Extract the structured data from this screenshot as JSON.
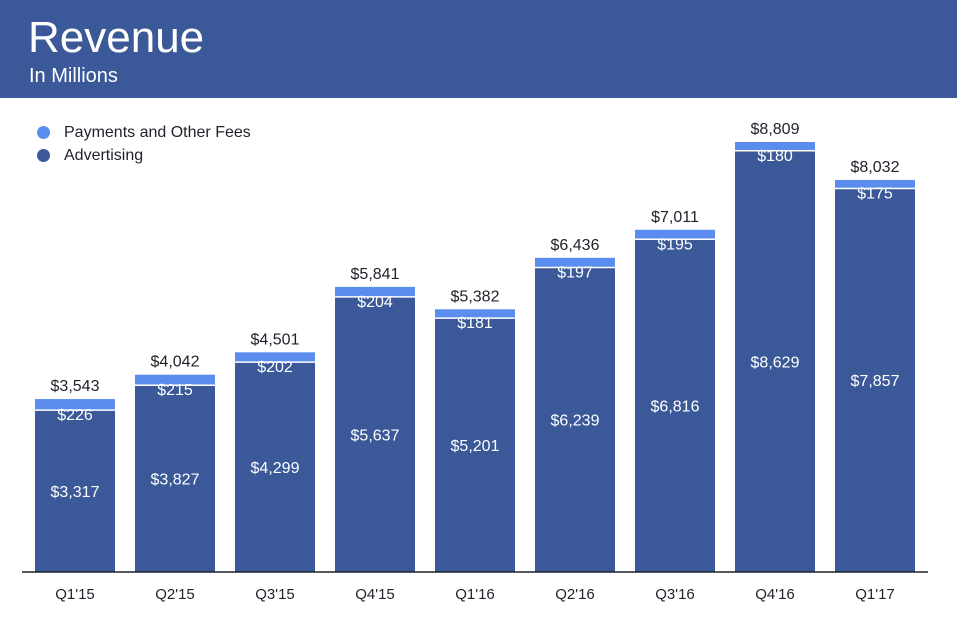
{
  "header": {
    "title": "Revenue",
    "subtitle": "In Millions"
  },
  "colors": {
    "header_bg": "#3b5998",
    "advertising": "#3b5998",
    "payments": "#5b8def",
    "axis": "#1d2129"
  },
  "legend": [
    {
      "label": "Payments and Other Fees",
      "color": "#5b8def"
    },
    {
      "label": "Advertising",
      "color": "#3b5998"
    }
  ],
  "chart_data": {
    "type": "bar",
    "stacked": true,
    "title": "Revenue",
    "subtitle": "In Millions",
    "categories": [
      "Q1'15",
      "Q2'15",
      "Q3'15",
      "Q4'15",
      "Q1'16",
      "Q2'16",
      "Q3'16",
      "Q4'16",
      "Q1'17"
    ],
    "series": [
      {
        "name": "Advertising",
        "values": [
          3317,
          3827,
          4299,
          5637,
          5201,
          6239,
          6816,
          8629,
          7857
        ],
        "labels": [
          "$3,317",
          "$3,827",
          "$4,299",
          "$5,637",
          "$5,201",
          "$6,239",
          "$6,816",
          "$8,629",
          "$7,857"
        ]
      },
      {
        "name": "Payments and Other Fees",
        "values": [
          226,
          215,
          202,
          204,
          181,
          197,
          195,
          180,
          175
        ],
        "labels": [
          "$226",
          "$215",
          "$202",
          "$204",
          "$181",
          "$197",
          "$195",
          "$180",
          "$175"
        ]
      }
    ],
    "totals": [
      3543,
      4042,
      4501,
      5841,
      5382,
      6436,
      7011,
      8809,
      8032
    ],
    "total_labels": [
      "$3,543",
      "$4,042",
      "$4,501",
      "$5,841",
      "$5,382",
      "$6,436",
      "$7,011",
      "$8,809",
      "$8,032"
    ],
    "ylim": [
      0,
      8809
    ],
    "grid": false,
    "legend_position": "top-left"
  }
}
